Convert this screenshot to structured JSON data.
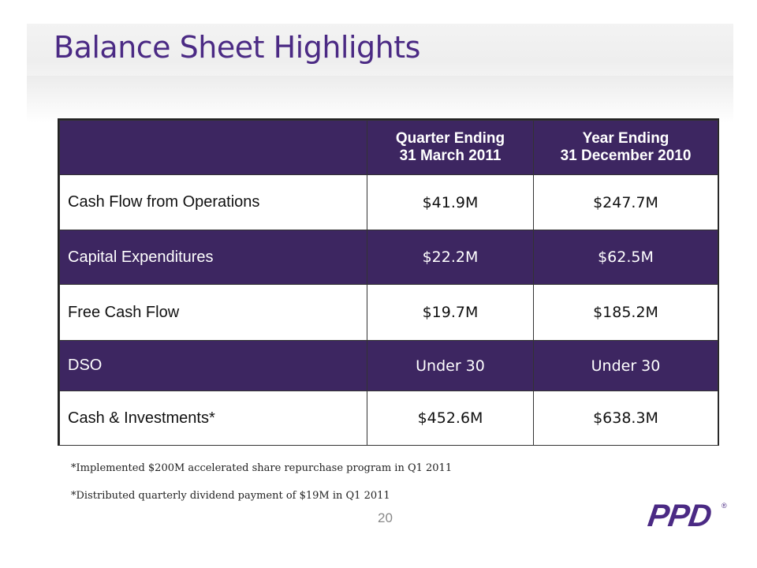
{
  "slide": {
    "title": "Balance Sheet Highlights",
    "page_number": "20",
    "logo_text": "PPD",
    "logo_mark": "®"
  },
  "table": {
    "headers": [
      {
        "line1": "Quarter Ending",
        "line2": "31 March 2011"
      },
      {
        "line1": "Year Ending",
        "line2": "31 December 2010"
      }
    ],
    "rows": [
      {
        "label": "Cash Flow from Operations",
        "q1_2011": "$41.9M",
        "fy_2010": "$247.7M"
      },
      {
        "label": "Capital Expenditures",
        "q1_2011": "$22.2M",
        "fy_2010": "$62.5M"
      },
      {
        "label": "Free Cash Flow",
        "q1_2011": "$19.7M",
        "fy_2010": "$185.2M"
      },
      {
        "label": "DSO",
        "q1_2011": "Under 30",
        "fy_2010": "Under 30"
      },
      {
        "label": "Cash & Investments*",
        "q1_2011": "$452.6M",
        "fy_2010": "$638.3M"
      }
    ]
  },
  "footnotes": [
    "*Implemented $200M accelerated share repurchase program in Q1 2011",
    "*Distributed quarterly dividend payment of $19M in Q1 2011"
  ],
  "colors": {
    "brand_purple": "#4b2a84",
    "table_dark_row": "#3d2661"
  }
}
